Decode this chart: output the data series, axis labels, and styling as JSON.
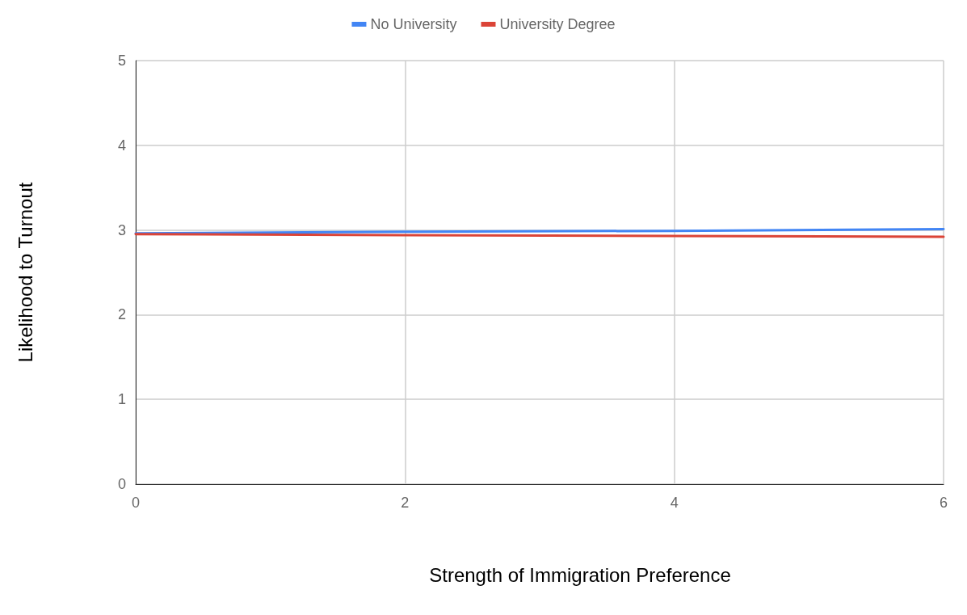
{
  "chart_data": {
    "type": "line",
    "xlabel": "Strength of Immigration Preference",
    "ylabel": "Likelihood to Turnout",
    "x": [
      0,
      2,
      4,
      6
    ],
    "series": [
      {
        "name": "No University",
        "color": "#4285f4",
        "values": [
          2.96,
          2.98,
          2.99,
          3.01
        ]
      },
      {
        "name": "University Degree",
        "color": "#db4437",
        "values": [
          2.95,
          2.94,
          2.93,
          2.92
        ]
      }
    ],
    "xlim": [
      0,
      6
    ],
    "xticks": [
      0,
      2,
      4,
      6
    ],
    "ylim": [
      0,
      5
    ],
    "yticks": [
      0,
      1,
      2,
      3,
      4,
      5
    ],
    "grid": true,
    "legend": "top",
    "marker": "none",
    "line_style": "solid"
  }
}
